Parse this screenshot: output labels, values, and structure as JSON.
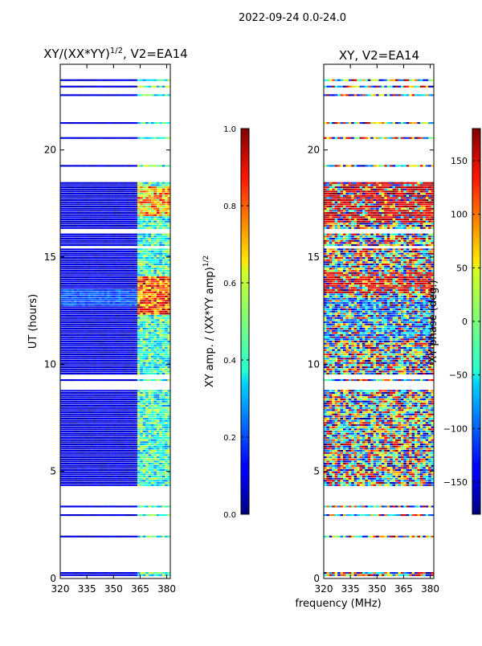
{
  "page_title": "2022-09-24 0.0-24.0",
  "shared_xlabel": "frequency (MHz)",
  "chart_data": [
    {
      "type": "heatmap",
      "title": "XY/(XX*YY)",
      "title_sup": "1/2",
      "title_suffix": ", V2=EA14",
      "xlabel": "",
      "ylabel": "UT (hours)",
      "xlim": [
        320,
        382
      ],
      "ylim": [
        0,
        24
      ],
      "xticks": [
        320,
        335,
        350,
        365,
        380
      ],
      "yticks": [
        0,
        5,
        10,
        15,
        20
      ],
      "colorbar": {
        "label": "XY amp. / (XX*YY amp)",
        "label_sup": "1/2",
        "range": [
          0.0,
          1.0
        ],
        "ticks": [
          "0.0",
          "0.2",
          "0.4",
          "0.6",
          "0.8",
          "1.0"
        ],
        "tick_values": [
          0.0,
          0.2,
          0.4,
          0.6,
          0.8,
          1.0
        ],
        "colormap": "jet"
      }
    },
    {
      "type": "heatmap",
      "title": "XY, V2=EA14",
      "xlabel": "frequency (MHz)",
      "ylabel": "",
      "xlim": [
        320,
        382
      ],
      "ylim": [
        0,
        24
      ],
      "xticks": [
        320,
        335,
        350,
        365,
        380
      ],
      "yticks": [
        0,
        5,
        10,
        15,
        20
      ],
      "colorbar": {
        "label": "XY phase (deg.)",
        "range": [
          -180,
          180
        ],
        "ticks": [
          "150",
          "100",
          "50",
          "0",
          "−50",
          "−100",
          "−150"
        ],
        "tick_values": [
          150,
          100,
          50,
          0,
          -50,
          -100,
          -150
        ],
        "colormap": "jet"
      }
    }
  ]
}
